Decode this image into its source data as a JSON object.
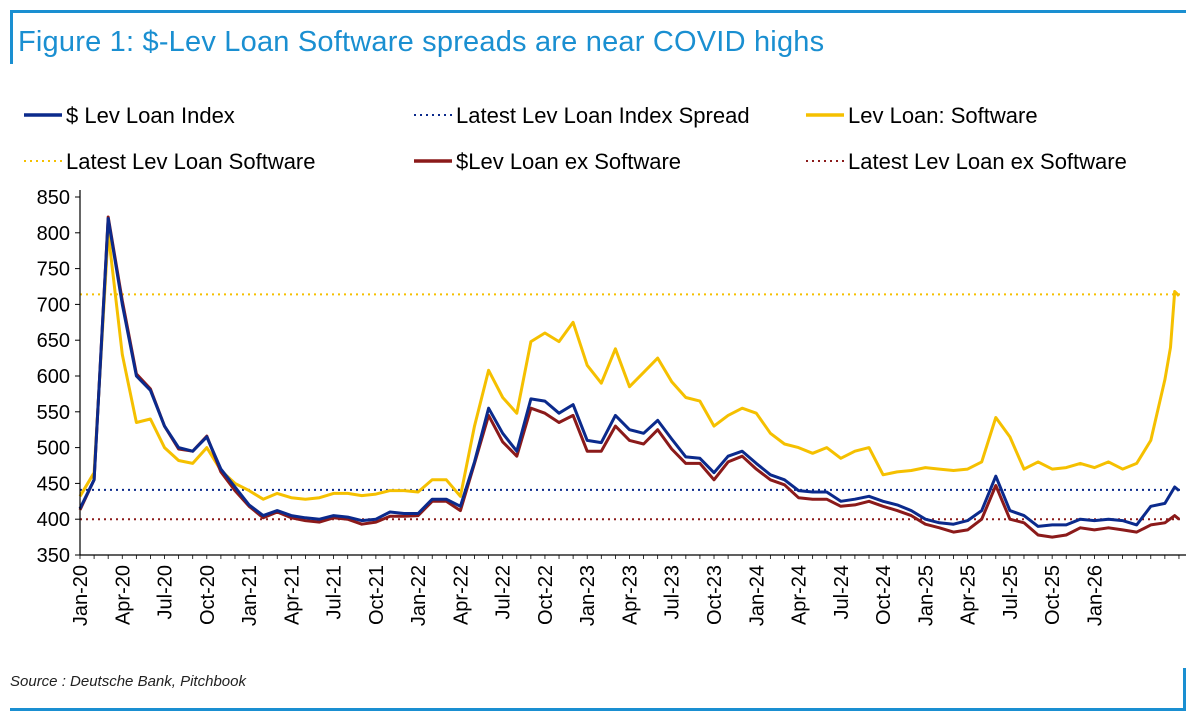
{
  "title": "Figure 1: $-Lev Loan Software spreads are near COVID highs",
  "source": "Source : Deutsche Bank, Pitchbook",
  "colors": {
    "accent": "#1a8fd1",
    "lev_loan_index": "#0b2a8c",
    "software": "#f5c000",
    "ex_software": "#8b1a1a"
  },
  "chart_data": {
    "type": "line",
    "title": "Figure 1: $-Lev Loan Software spreads are near COVID highs",
    "xlabel": "",
    "ylabel": "",
    "ylim": [
      350,
      850
    ],
    "yticks": [
      350,
      400,
      450,
      500,
      550,
      600,
      650,
      700,
      750,
      800,
      850
    ],
    "xlim": [
      0,
      78.5
    ],
    "xtick_labels": [
      "Jan-20",
      "Apr-20",
      "Jul-20",
      "Oct-20",
      "Jan-21",
      "Apr-21",
      "Jul-21",
      "Oct-21",
      "Jan-22",
      "Apr-22",
      "Jul-22",
      "Oct-22",
      "Jan-23",
      "Apr-23",
      "Jul-23",
      "Oct-23",
      "Jan-24",
      "Apr-24",
      "Jul-24",
      "Oct-24",
      "Jan-25",
      "Apr-25",
      "Jul-25",
      "Oct-25",
      "Jan-26"
    ],
    "xtick_positions": [
      0,
      3,
      6,
      9,
      12,
      15,
      18,
      21,
      24,
      27,
      30,
      33,
      36,
      39,
      42,
      45,
      48,
      51,
      54,
      57,
      60,
      63,
      66,
      69,
      72
    ],
    "grid": false,
    "legend": "top",
    "series": [
      {
        "name": "$ Lev Loan Index",
        "style": "solid",
        "color": "#0b2a8c",
        "points": [
          [
            0,
            415
          ],
          [
            1,
            455
          ],
          [
            2,
            820
          ],
          [
            3,
            700
          ],
          [
            4,
            600
          ],
          [
            5,
            580
          ],
          [
            6,
            530
          ],
          [
            7,
            500
          ],
          [
            8,
            495
          ],
          [
            9,
            515
          ],
          [
            10,
            470
          ],
          [
            11,
            445
          ],
          [
            12,
            420
          ],
          [
            13,
            405
          ],
          [
            14,
            412
          ],
          [
            15,
            405
          ],
          [
            16,
            402
          ],
          [
            17,
            400
          ],
          [
            18,
            405
          ],
          [
            19,
            403
          ],
          [
            20,
            398
          ],
          [
            21,
            400
          ],
          [
            22,
            410
          ],
          [
            23,
            408
          ],
          [
            24,
            408
          ],
          [
            25,
            428
          ],
          [
            26,
            428
          ],
          [
            27,
            418
          ],
          [
            28,
            480
          ],
          [
            29,
            555
          ],
          [
            30,
            520
          ],
          [
            31,
            495
          ],
          [
            32,
            568
          ],
          [
            33,
            565
          ],
          [
            34,
            548
          ],
          [
            35,
            560
          ],
          [
            36,
            510
          ],
          [
            37,
            507
          ],
          [
            38,
            545
          ],
          [
            39,
            525
          ],
          [
            40,
            520
          ],
          [
            41,
            538
          ],
          [
            42,
            512
          ],
          [
            43,
            487
          ],
          [
            44,
            485
          ],
          [
            45,
            465
          ],
          [
            46,
            488
          ],
          [
            47,
            495
          ],
          [
            48,
            478
          ],
          [
            49,
            462
          ],
          [
            50,
            455
          ],
          [
            51,
            440
          ],
          [
            52,
            438
          ],
          [
            53,
            438
          ],
          [
            54,
            425
          ],
          [
            55,
            428
          ],
          [
            56,
            432
          ],
          [
            57,
            425
          ],
          [
            58,
            420
          ],
          [
            59,
            412
          ],
          [
            60,
            400
          ],
          [
            61,
            395
          ],
          [
            62,
            393
          ],
          [
            63,
            398
          ],
          [
            64,
            412
          ],
          [
            65,
            460
          ],
          [
            66,
            412
          ],
          [
            67,
            405
          ],
          [
            68,
            390
          ],
          [
            69,
            392
          ],
          [
            70,
            392
          ],
          [
            71,
            400
          ],
          [
            72,
            398
          ],
          [
            73,
            400
          ],
          [
            74,
            398
          ],
          [
            75,
            392
          ],
          [
            76,
            418
          ],
          [
            77,
            422
          ],
          [
            77.7,
            445
          ],
          [
            78,
            440
          ]
        ]
      },
      {
        "name": "Latest Lev Loan Index Spread",
        "style": "dotted",
        "color": "#0b2a8c",
        "value": 441
      },
      {
        "name": "Lev Loan: Software",
        "style": "solid",
        "color": "#f5c000",
        "points": [
          [
            0,
            432
          ],
          [
            1,
            465
          ],
          [
            2,
            800
          ],
          [
            3,
            630
          ],
          [
            4,
            535
          ],
          [
            5,
            540
          ],
          [
            6,
            500
          ],
          [
            7,
            482
          ],
          [
            8,
            478
          ],
          [
            9,
            500
          ],
          [
            10,
            468
          ],
          [
            11,
            450
          ],
          [
            12,
            440
          ],
          [
            13,
            428
          ],
          [
            14,
            436
          ],
          [
            15,
            430
          ],
          [
            16,
            428
          ],
          [
            17,
            430
          ],
          [
            18,
            436
          ],
          [
            19,
            436
          ],
          [
            20,
            433
          ],
          [
            21,
            435
          ],
          [
            22,
            440
          ],
          [
            23,
            440
          ],
          [
            24,
            438
          ],
          [
            25,
            455
          ],
          [
            26,
            455
          ],
          [
            27,
            432
          ],
          [
            28,
            530
          ],
          [
            29,
            608
          ],
          [
            30,
            570
          ],
          [
            31,
            548
          ],
          [
            32,
            648
          ],
          [
            33,
            660
          ],
          [
            34,
            648
          ],
          [
            35,
            675
          ],
          [
            36,
            615
          ],
          [
            37,
            590
          ],
          [
            38,
            638
          ],
          [
            39,
            585
          ],
          [
            40,
            605
          ],
          [
            41,
            625
          ],
          [
            42,
            592
          ],
          [
            43,
            570
          ],
          [
            44,
            565
          ],
          [
            45,
            530
          ],
          [
            46,
            545
          ],
          [
            47,
            555
          ],
          [
            48,
            548
          ],
          [
            49,
            520
          ],
          [
            50,
            505
          ],
          [
            51,
            500
          ],
          [
            52,
            492
          ],
          [
            53,
            500
          ],
          [
            54,
            485
          ],
          [
            55,
            495
          ],
          [
            56,
            500
          ],
          [
            57,
            462
          ],
          [
            58,
            466
          ],
          [
            59,
            468
          ],
          [
            60,
            472
          ],
          [
            61,
            470
          ],
          [
            62,
            468
          ],
          [
            63,
            470
          ],
          [
            64,
            480
          ],
          [
            65,
            542
          ],
          [
            66,
            515
          ],
          [
            67,
            470
          ],
          [
            68,
            480
          ],
          [
            69,
            470
          ],
          [
            70,
            472
          ],
          [
            71,
            478
          ],
          [
            72,
            472
          ],
          [
            73,
            480
          ],
          [
            74,
            470
          ],
          [
            75,
            478
          ],
          [
            76,
            510
          ],
          [
            77,
            595
          ],
          [
            77.4,
            640
          ],
          [
            77.7,
            718
          ],
          [
            78,
            712
          ]
        ]
      },
      {
        "name": "Latest Lev Loan Software",
        "style": "dotted",
        "color": "#f5c000",
        "value": 714
      },
      {
        "name": "$Lev Loan ex Software",
        "style": "solid",
        "color": "#8b1a1a",
        "points": [
          [
            0,
            413
          ],
          [
            1,
            455
          ],
          [
            2,
            822
          ],
          [
            3,
            705
          ],
          [
            4,
            603
          ],
          [
            5,
            582
          ],
          [
            6,
            530
          ],
          [
            7,
            498
          ],
          [
            8,
            495
          ],
          [
            9,
            516
          ],
          [
            10,
            466
          ],
          [
            11,
            440
          ],
          [
            12,
            418
          ],
          [
            13,
            402
          ],
          [
            14,
            410
          ],
          [
            15,
            402
          ],
          [
            16,
            398
          ],
          [
            17,
            396
          ],
          [
            18,
            402
          ],
          [
            19,
            400
          ],
          [
            20,
            393
          ],
          [
            21,
            396
          ],
          [
            22,
            404
          ],
          [
            23,
            404
          ],
          [
            24,
            405
          ],
          [
            25,
            425
          ],
          [
            26,
            425
          ],
          [
            27,
            412
          ],
          [
            28,
            478
          ],
          [
            29,
            545
          ],
          [
            30,
            508
          ],
          [
            31,
            488
          ],
          [
            32,
            555
          ],
          [
            33,
            548
          ],
          [
            34,
            535
          ],
          [
            35,
            545
          ],
          [
            36,
            495
          ],
          [
            37,
            495
          ],
          [
            38,
            530
          ],
          [
            39,
            510
          ],
          [
            40,
            505
          ],
          [
            41,
            525
          ],
          [
            42,
            498
          ],
          [
            43,
            478
          ],
          [
            44,
            478
          ],
          [
            45,
            455
          ],
          [
            46,
            480
          ],
          [
            47,
            488
          ],
          [
            48,
            470
          ],
          [
            49,
            455
          ],
          [
            50,
            448
          ],
          [
            51,
            430
          ],
          [
            52,
            428
          ],
          [
            53,
            428
          ],
          [
            54,
            418
          ],
          [
            55,
            420
          ],
          [
            56,
            425
          ],
          [
            57,
            418
          ],
          [
            58,
            412
          ],
          [
            59,
            405
          ],
          [
            60,
            393
          ],
          [
            61,
            388
          ],
          [
            62,
            382
          ],
          [
            63,
            385
          ],
          [
            64,
            400
          ],
          [
            65,
            447
          ],
          [
            66,
            400
          ],
          [
            67,
            395
          ],
          [
            68,
            378
          ],
          [
            69,
            375
          ],
          [
            70,
            378
          ],
          [
            71,
            388
          ],
          [
            72,
            385
          ],
          [
            73,
            388
          ],
          [
            74,
            385
          ],
          [
            75,
            382
          ],
          [
            76,
            392
          ],
          [
            77,
            395
          ],
          [
            77.7,
            405
          ],
          [
            78,
            400
          ]
        ]
      },
      {
        "name": "Latest Lev Loan ex Software",
        "style": "dotted",
        "color": "#8b1a1a",
        "value": 400
      }
    ]
  }
}
